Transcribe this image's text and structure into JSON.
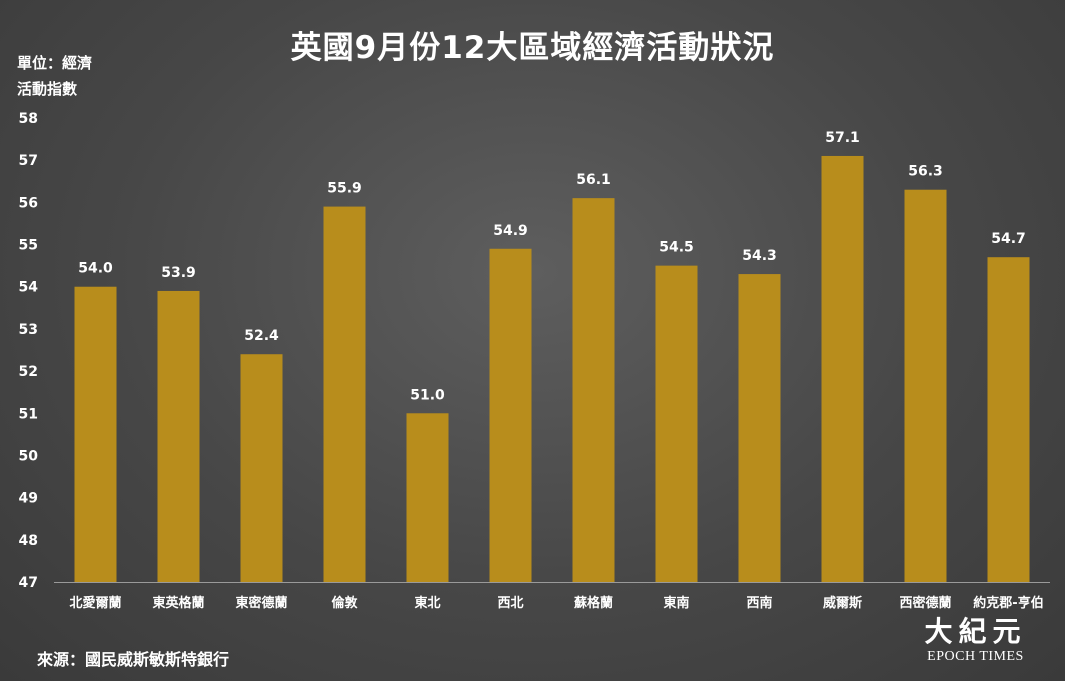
{
  "title": "英國9月份12大區域經濟活動狀況",
  "unit": {
    "line1": "單位：經濟",
    "line2": "活動指數"
  },
  "source": "來源：國民威斯敏斯特銀行",
  "logo": {
    "chinese": "大紀元",
    "english": "EPOCH TIMES"
  },
  "colors": {
    "bar": "#b88d1c",
    "background": "#4a4a4a",
    "text": "#ffffff"
  },
  "chart_data": {
    "type": "bar",
    "title": "英國9月份12大區域經濟活動狀況",
    "ylabel": "單位：經濟活動指數",
    "xlabel": "",
    "ylim": [
      47,
      58
    ],
    "yticks": [
      47,
      48,
      49,
      50,
      51,
      52,
      53,
      54,
      55,
      56,
      57,
      58
    ],
    "grid": false,
    "categories": [
      "北愛爾蘭",
      "東英格蘭",
      "東密德蘭",
      "倫敦",
      "東北",
      "西北",
      "蘇格蘭",
      "東南",
      "西南",
      "威爾斯",
      "西密德蘭",
      "約克郡-亨伯"
    ],
    "values": [
      54.0,
      53.9,
      52.4,
      55.9,
      51.0,
      54.9,
      56.1,
      54.5,
      54.3,
      57.1,
      56.3,
      54.7
    ],
    "value_labels": [
      "54.0",
      "53.9",
      "52.4",
      "55.9",
      "51.0",
      "54.9",
      "56.1",
      "54.5",
      "54.3",
      "57.1",
      "56.3",
      "54.7"
    ]
  }
}
